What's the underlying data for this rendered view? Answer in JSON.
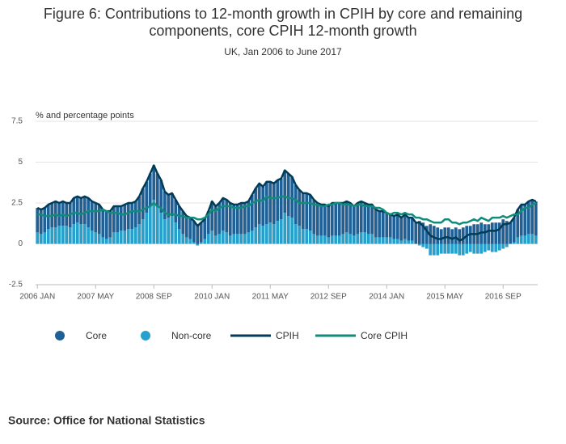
{
  "chart_data": {
    "type": "bar_line",
    "title": [
      "Figure 6: Contributions to 12-month growth in CPIH by core and remaining",
      "components, core CPIH 12-month growth"
    ],
    "subtitle": "UK, Jan 2006 to June 2017",
    "y_label": "% and percentage points",
    "source": "Source: Office for National Statistics",
    "ylim": [
      -2.5,
      7.5
    ],
    "yticks": [
      -2.5,
      0,
      2.5,
      5,
      7.5
    ],
    "grid": true,
    "legend": "bottom",
    "categories": [
      "2006 JAN",
      null,
      null,
      null,
      null,
      null,
      null,
      null,
      null,
      null,
      null,
      null,
      null,
      null,
      null,
      null,
      "2007 MAY",
      null,
      null,
      null,
      null,
      null,
      null,
      null,
      null,
      null,
      null,
      null,
      null,
      null,
      null,
      null,
      "2008 SEP",
      null,
      null,
      null,
      null,
      null,
      null,
      null,
      null,
      null,
      null,
      null,
      null,
      null,
      null,
      null,
      "2010 JAN",
      null,
      null,
      null,
      null,
      null,
      null,
      null,
      null,
      null,
      null,
      null,
      null,
      null,
      null,
      null,
      "2011 MAY",
      null,
      null,
      null,
      null,
      null,
      null,
      null,
      null,
      null,
      null,
      null,
      null,
      null,
      null,
      null,
      "2012 SEP",
      null,
      null,
      null,
      null,
      null,
      null,
      null,
      null,
      null,
      null,
      null,
      null,
      null,
      null,
      null,
      "2014 JAN",
      null,
      null,
      null,
      null,
      null,
      null,
      null,
      null,
      null,
      null,
      null,
      null,
      null,
      null,
      null,
      "2015 MAY",
      null,
      null,
      null,
      null,
      null,
      null,
      null,
      null,
      null,
      null,
      null,
      null,
      null,
      null,
      null,
      "2016 SEP",
      null,
      null,
      null,
      null,
      null,
      null,
      null,
      null,
      null
    ],
    "series": [
      {
        "name": "Core",
        "kind": "bar",
        "color": "#206095",
        "values": [
          1.5,
          1.5,
          1.5,
          1.5,
          1.5,
          1.6,
          1.4,
          1.5,
          1.4,
          1.5,
          1.6,
          1.6,
          1.6,
          1.7,
          1.8,
          1.8,
          1.8,
          1.8,
          1.7,
          1.7,
          1.6,
          1.6,
          1.6,
          1.5,
          1.6,
          1.6,
          1.6,
          1.6,
          1.7,
          1.9,
          1.9,
          2.0,
          2.1,
          2.0,
          2.0,
          1.7,
          1.4,
          1.4,
          1.4,
          1.4,
          1.4,
          1.3,
          1.3,
          1.3,
          1.2,
          1.2,
          1.2,
          1.4,
          1.8,
          1.8,
          1.9,
          2.0,
          2.0,
          2.0,
          1.8,
          1.8,
          1.9,
          1.9,
          1.9,
          2.2,
          2.4,
          2.5,
          2.4,
          2.6,
          2.5,
          2.5,
          2.5,
          2.5,
          2.6,
          2.6,
          2.5,
          2.4,
          2.2,
          2.2,
          2.2,
          2.2,
          2.1,
          2.0,
          1.9,
          1.9,
          1.9,
          2.0,
          2.0,
          2.0,
          1.9,
          1.9,
          1.9,
          1.8,
          1.9,
          1.9,
          1.8,
          1.8,
          1.8,
          1.7,
          1.6,
          1.6,
          1.5,
          1.4,
          1.4,
          1.5,
          1.4,
          1.5,
          1.4,
          1.4,
          1.3,
          1.4,
          1.3,
          1.1,
          1.2,
          1.1,
          1.0,
          0.9,
          1.0,
          1.0,
          0.9,
          1.0,
          0.9,
          1.0,
          1.1,
          1.1,
          1.2,
          1.2,
          1.3,
          1.2,
          1.2,
          1.3,
          1.3,
          1.3,
          1.5,
          1.4,
          1.3,
          1.5,
          1.7,
          1.9,
          1.9,
          2.0,
          2.1,
          2.1
        ]
      },
      {
        "name": "Non-core",
        "kind": "bar",
        "color": "#27a0cc",
        "values": [
          0.7,
          0.6,
          0.7,
          0.9,
          1.0,
          1.0,
          1.1,
          1.1,
          1.1,
          1.0,
          1.2,
          1.3,
          1.2,
          1.2,
          1.0,
          0.8,
          0.7,
          0.6,
          0.4,
          0.3,
          0.4,
          0.7,
          0.7,
          0.8,
          0.8,
          0.9,
          0.9,
          1.0,
          1.2,
          1.5,
          1.9,
          2.3,
          2.7,
          2.3,
          1.9,
          1.5,
          1.6,
          1.7,
          1.3,
          0.9,
          0.6,
          0.4,
          0.3,
          0.1,
          -0.1,
          0.1,
          0.3,
          0.6,
          0.8,
          0.5,
          0.6,
          0.8,
          0.7,
          0.5,
          0.6,
          0.6,
          0.6,
          0.6,
          0.7,
          0.8,
          1.0,
          1.2,
          1.1,
          1.2,
          1.3,
          1.2,
          1.4,
          1.5,
          1.9,
          1.7,
          1.6,
          1.2,
          1.1,
          0.9,
          0.9,
          0.8,
          0.6,
          0.5,
          0.5,
          0.5,
          0.4,
          0.5,
          0.5,
          0.5,
          0.6,
          0.7,
          0.6,
          0.5,
          0.6,
          0.7,
          0.7,
          0.6,
          0.6,
          0.4,
          0.4,
          0.4,
          0.4,
          0.4,
          0.3,
          0.3,
          0.2,
          0.3,
          0.2,
          0.2,
          0.0,
          -0.1,
          -0.2,
          -0.3,
          -0.7,
          -0.7,
          -0.7,
          -0.6,
          -0.6,
          -0.6,
          -0.6,
          -0.6,
          -0.7,
          -0.7,
          -0.6,
          -0.5,
          -0.6,
          -0.6,
          -0.6,
          -0.5,
          -0.4,
          -0.5,
          -0.5,
          -0.4,
          -0.3,
          -0.2,
          0.0,
          0.1,
          0.4,
          0.5,
          0.5,
          0.6,
          0.6,
          0.5
        ]
      },
      {
        "name": "CPIH",
        "kind": "line",
        "color": "#003c57",
        "values": [
          2.2,
          2.1,
          2.2,
          2.4,
          2.5,
          2.6,
          2.5,
          2.6,
          2.5,
          2.5,
          2.8,
          2.9,
          2.8,
          2.9,
          2.8,
          2.6,
          2.5,
          2.4,
          2.1,
          2.0,
          2.0,
          2.3,
          2.3,
          2.3,
          2.4,
          2.5,
          2.5,
          2.6,
          2.9,
          3.4,
          3.8,
          4.3,
          4.8,
          4.3,
          3.9,
          3.2,
          3.0,
          3.1,
          2.7,
          2.3,
          2.0,
          1.7,
          1.6,
          1.4,
          1.1,
          1.3,
          1.5,
          2.0,
          2.6,
          2.3,
          2.5,
          2.8,
          2.7,
          2.5,
          2.4,
          2.4,
          2.5,
          2.5,
          2.6,
          3.0,
          3.4,
          3.7,
          3.5,
          3.8,
          3.8,
          3.7,
          3.9,
          4.0,
          4.5,
          4.3,
          4.1,
          3.6,
          3.3,
          3.1,
          3.1,
          3.0,
          2.7,
          2.5,
          2.4,
          2.4,
          2.3,
          2.5,
          2.5,
          2.5,
          2.5,
          2.6,
          2.5,
          2.3,
          2.5,
          2.6,
          2.5,
          2.4,
          2.4,
          2.1,
          2.0,
          2.0,
          1.9,
          1.8,
          1.7,
          1.8,
          1.6,
          1.8,
          1.6,
          1.6,
          1.3,
          1.3,
          1.1,
          0.8,
          0.5,
          0.4,
          0.3,
          0.3,
          0.4,
          0.4,
          0.3,
          0.4,
          0.2,
          0.3,
          0.5,
          0.6,
          0.6,
          0.6,
          0.7,
          0.7,
          0.8,
          0.8,
          0.8,
          0.9,
          1.2,
          1.2,
          1.3,
          1.6,
          2.1,
          2.4,
          2.4,
          2.6,
          2.7,
          2.6
        ]
      },
      {
        "name": "Core CPIH",
        "kind": "line",
        "color": "#118c7b",
        "values": [
          1.8,
          1.8,
          1.7,
          1.7,
          1.7,
          1.8,
          1.7,
          1.8,
          1.7,
          1.8,
          1.9,
          1.9,
          1.8,
          1.9,
          2.0,
          2.0,
          2.0,
          2.0,
          2.1,
          2.0,
          1.9,
          1.9,
          1.9,
          1.8,
          1.8,
          1.9,
          2.0,
          2.0,
          2.0,
          2.1,
          2.2,
          2.3,
          2.5,
          2.3,
          2.2,
          1.9,
          1.8,
          1.8,
          1.8,
          1.7,
          1.7,
          1.6,
          1.6,
          1.6,
          1.5,
          1.5,
          1.6,
          1.8,
          2.1,
          2.0,
          2.2,
          2.3,
          2.3,
          2.3,
          2.2,
          2.2,
          2.2,
          2.3,
          2.3,
          2.5,
          2.6,
          2.7,
          2.6,
          2.9,
          2.8,
          2.8,
          2.8,
          2.9,
          2.9,
          2.8,
          2.8,
          2.7,
          2.5,
          2.5,
          2.5,
          2.5,
          2.4,
          2.4,
          2.3,
          2.3,
          2.4,
          2.4,
          2.5,
          2.5,
          2.4,
          2.4,
          2.4,
          2.3,
          2.4,
          2.4,
          2.3,
          2.3,
          2.3,
          2.2,
          2.2,
          2.1,
          1.9,
          1.8,
          1.9,
          1.9,
          1.8,
          1.9,
          1.8,
          1.8,
          1.6,
          1.6,
          1.5,
          1.5,
          1.4,
          1.3,
          1.3,
          1.3,
          1.5,
          1.5,
          1.3,
          1.3,
          1.2,
          1.3,
          1.3,
          1.4,
          1.5,
          1.4,
          1.6,
          1.5,
          1.4,
          1.6,
          1.6,
          1.6,
          1.7,
          1.6,
          1.7,
          1.8,
          1.8,
          2.0,
          2.2,
          2.2,
          2.4,
          2.5
        ]
      }
    ]
  }
}
